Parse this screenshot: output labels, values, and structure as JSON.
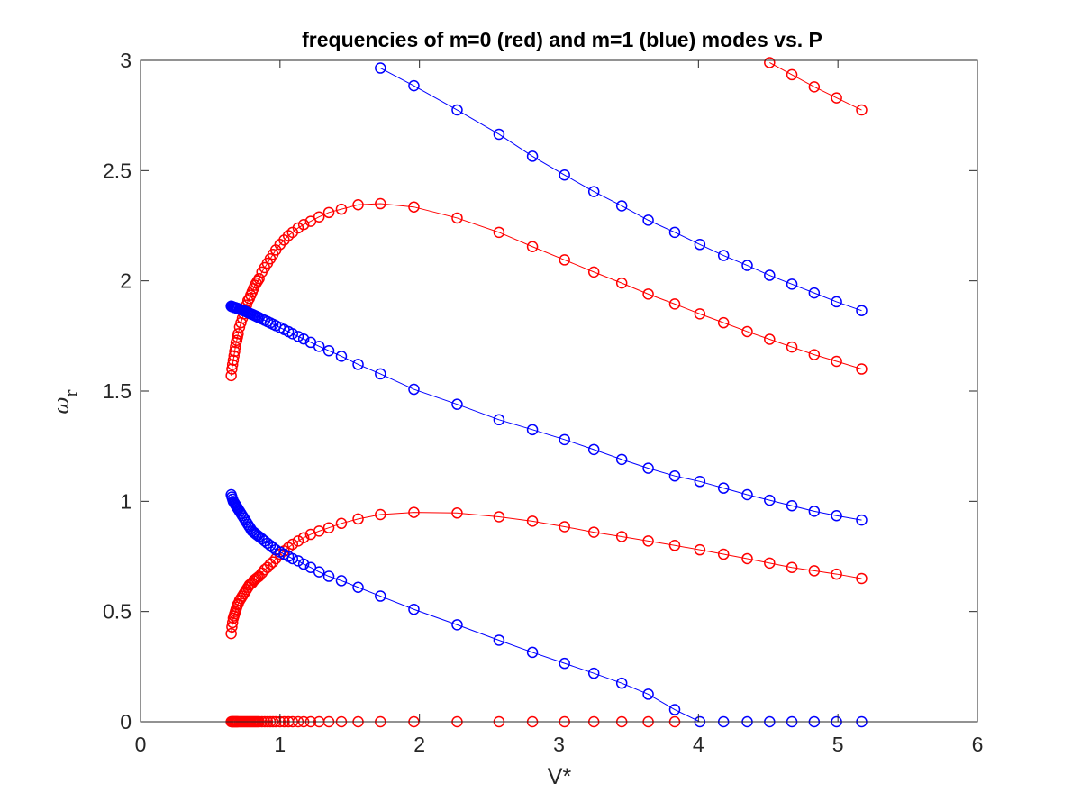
{
  "chart_data": {
    "type": "line",
    "title": "frequencies of m=0 (red) and m=1 (blue) modes vs. P",
    "xlabel": "V*",
    "ylabel": "ω_r",
    "ylabel_symbol": "ω",
    "ylabel_subscript": "r",
    "xlim": [
      0,
      6
    ],
    "ylim": [
      0,
      3
    ],
    "xticks": [
      0,
      1,
      2,
      3,
      4,
      5,
      6
    ],
    "xtick_labels": [
      "0",
      "1",
      "2",
      "3",
      "4",
      "5",
      "6"
    ],
    "yticks": [
      0,
      0.5,
      1,
      1.5,
      2,
      2.5,
      3
    ],
    "ytick_labels": [
      "0",
      "0.5",
      "1",
      "1.5",
      "2",
      "2.5",
      "3"
    ],
    "grid": false,
    "legend": "none",
    "marker": "open-circle",
    "colors": {
      "red": "#ff0000",
      "blue": "#0000ff",
      "axis": "#262626"
    },
    "x": [
      0.65,
      0.655,
      0.66,
      0.665,
      0.67,
      0.675,
      0.68,
      0.685,
      0.69,
      0.695,
      0.7,
      0.71,
      0.72,
      0.73,
      0.74,
      0.75,
      0.76,
      0.77,
      0.78,
      0.79,
      0.8,
      0.81,
      0.82,
      0.83,
      0.84,
      0.85,
      0.87,
      0.89,
      0.91,
      0.93,
      0.95,
      0.97,
      1.0,
      1.03,
      1.06,
      1.09,
      1.13,
      1.17,
      1.22,
      1.28,
      1.35,
      1.44,
      1.56,
      1.72,
      1.96,
      2.27,
      2.57,
      2.81,
      3.04,
      3.25,
      3.45,
      3.64,
      3.83,
      4.01,
      4.18,
      4.35,
      4.51,
      4.67,
      4.83,
      4.99,
      5.17
    ],
    "series": [
      {
        "color": "red",
        "values": [
          0.4,
          0.43,
          0.45,
          0.47,
          0.48,
          0.49,
          0.5,
          0.51,
          0.52,
          0.53,
          0.535,
          0.55,
          0.56,
          0.57,
          0.58,
          0.59,
          0.6,
          0.61,
          0.62,
          0.625,
          0.63,
          0.64,
          0.645,
          0.65,
          0.655,
          0.66,
          0.675,
          0.69,
          0.7,
          0.715,
          0.725,
          0.74,
          0.76,
          0.775,
          0.79,
          0.805,
          0.82,
          0.835,
          0.85,
          0.865,
          0.88,
          0.9,
          0.92,
          0.94,
          0.95,
          0.947,
          0.93,
          0.91,
          0.885,
          0.86,
          0.84,
          0.82,
          0.8,
          0.78,
          0.76,
          0.74,
          0.72,
          0.7,
          0.685,
          0.67,
          0.65
        ]
      },
      {
        "color": "red",
        "values": [
          1.57,
          1.6,
          1.62,
          1.64,
          1.66,
          1.68,
          1.7,
          1.72,
          1.73,
          1.745,
          1.76,
          1.79,
          1.81,
          1.83,
          1.85,
          1.87,
          1.89,
          1.91,
          1.92,
          1.935,
          1.95,
          1.965,
          1.98,
          1.99,
          2.0,
          2.01,
          2.04,
          2.06,
          2.08,
          2.1,
          2.12,
          2.14,
          2.165,
          2.185,
          2.205,
          2.22,
          2.24,
          2.255,
          2.27,
          2.29,
          2.31,
          2.325,
          2.345,
          2.35,
          2.335,
          2.285,
          2.22,
          2.155,
          2.095,
          2.04,
          1.99,
          1.94,
          1.895,
          1.85,
          1.81,
          1.77,
          1.735,
          1.7,
          1.665,
          1.635,
          1.6
        ]
      },
      {
        "color": "red",
        "values": [
          null,
          null,
          null,
          null,
          null,
          null,
          null,
          null,
          null,
          null,
          null,
          null,
          null,
          null,
          null,
          null,
          null,
          null,
          null,
          null,
          null,
          null,
          null,
          null,
          null,
          null,
          null,
          null,
          null,
          null,
          null,
          null,
          null,
          null,
          null,
          null,
          null,
          null,
          null,
          null,
          null,
          null,
          null,
          null,
          null,
          null,
          null,
          null,
          null,
          null,
          null,
          null,
          null,
          null,
          null,
          null,
          2.99,
          2.935,
          2.88,
          2.83,
          2.775
        ]
      },
      {
        "color": "red",
        "values": [
          0,
          0,
          0,
          0,
          0,
          0,
          0,
          0,
          0,
          0,
          0,
          0,
          0,
          0,
          0,
          0,
          0,
          0,
          0,
          0,
          0,
          0,
          0,
          0,
          0,
          0,
          0,
          0,
          0,
          0,
          0,
          0,
          0,
          0,
          0,
          0,
          0,
          0,
          0,
          0,
          0,
          0,
          0,
          0,
          0,
          0,
          0,
          0,
          0,
          0,
          0,
          0,
          0,
          null,
          null,
          null,
          null,
          null,
          null,
          null,
          null
        ]
      },
      {
        "color": "blue",
        "values": [
          1.03,
          1.02,
          1.01,
          1.0,
          0.995,
          0.99,
          0.985,
          0.98,
          0.975,
          0.97,
          0.965,
          0.955,
          0.945,
          0.935,
          0.925,
          0.915,
          0.905,
          0.895,
          0.885,
          0.875,
          0.865,
          0.86,
          0.855,
          0.85,
          0.845,
          0.84,
          0.83,
          0.82,
          0.81,
          0.8,
          0.79,
          0.78,
          0.77,
          0.76,
          0.75,
          0.74,
          0.73,
          0.715,
          0.7,
          0.68,
          0.66,
          0.64,
          0.61,
          0.57,
          0.51,
          0.44,
          0.37,
          0.315,
          0.265,
          0.22,
          0.175,
          0.125,
          0.055,
          0,
          0,
          0,
          0,
          0,
          0,
          0,
          0
        ]
      },
      {
        "color": "blue",
        "values": [
          1.885,
          1.883,
          1.882,
          1.881,
          1.88,
          1.879,
          1.878,
          1.877,
          1.876,
          1.875,
          1.874,
          1.871,
          1.869,
          1.867,
          1.864,
          1.862,
          1.859,
          1.856,
          1.853,
          1.85,
          1.848,
          1.845,
          1.842,
          1.839,
          1.836,
          1.833,
          1.827,
          1.821,
          1.815,
          1.809,
          1.803,
          1.797,
          1.788,
          1.779,
          1.77,
          1.76,
          1.748,
          1.736,
          1.721,
          1.703,
          1.683,
          1.658,
          1.621,
          1.578,
          1.508,
          1.44,
          1.37,
          1.325,
          1.28,
          1.235,
          1.19,
          1.15,
          1.115,
          1.09,
          1.06,
          1.03,
          1.005,
          0.98,
          0.955,
          0.935,
          0.915
        ]
      },
      {
        "color": "blue",
        "values": [
          null,
          null,
          null,
          null,
          null,
          null,
          null,
          null,
          null,
          null,
          null,
          null,
          null,
          null,
          null,
          null,
          null,
          null,
          null,
          null,
          null,
          null,
          null,
          null,
          null,
          null,
          null,
          null,
          null,
          null,
          null,
          null,
          null,
          null,
          null,
          null,
          null,
          null,
          null,
          null,
          null,
          null,
          null,
          2.965,
          2.885,
          2.775,
          2.665,
          2.565,
          2.48,
          2.405,
          2.34,
          2.275,
          2.22,
          2.165,
          2.115,
          2.07,
          2.025,
          1.985,
          1.945,
          1.905,
          1.865
        ]
      }
    ]
  }
}
